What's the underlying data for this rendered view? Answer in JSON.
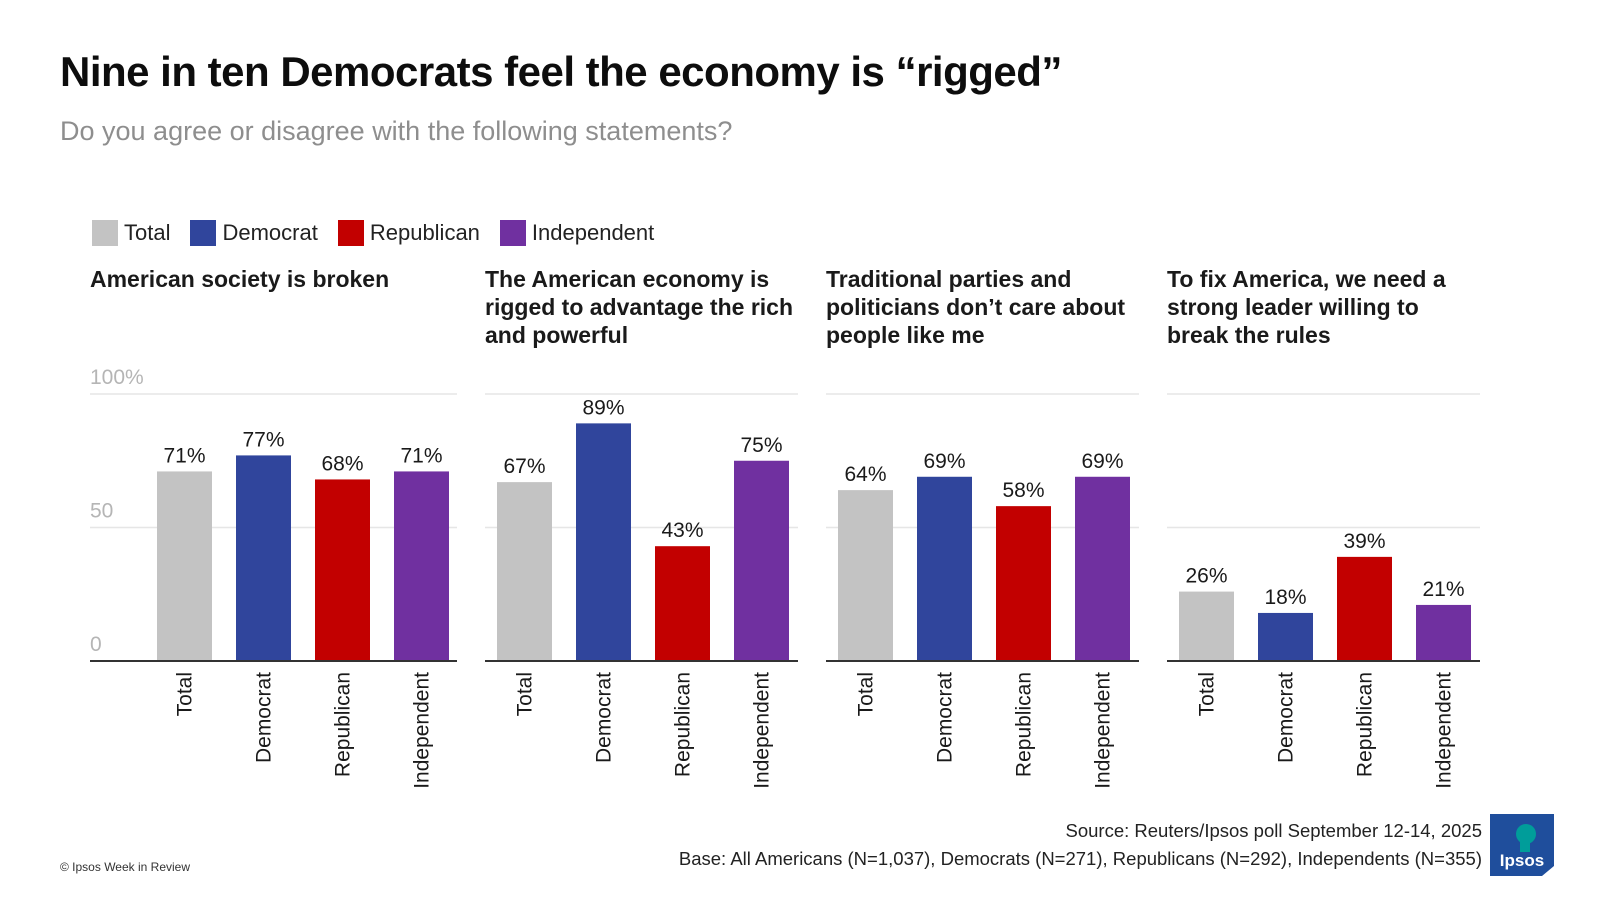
{
  "header": {
    "title": "Nine in ten Democrats feel the economy is “rigged”",
    "subtitle": "Do you agree or disagree with the following statements?"
  },
  "legend": {
    "items": [
      {
        "label": "Total",
        "color": "#c3c3c3"
      },
      {
        "label": "Democrat",
        "color": "#30459c"
      },
      {
        "label": "Republican",
        "color": "#c20000"
      },
      {
        "label": "Independent",
        "color": "#7030a0"
      }
    ]
  },
  "chart_data": [
    {
      "type": "bar",
      "title_lines": [
        "American society is broken"
      ],
      "categories": [
        "Total",
        "Democrat",
        "Republican",
        "Independent"
      ],
      "values": [
        71,
        77,
        68,
        71
      ],
      "value_labels": [
        "71%",
        "77%",
        "68%",
        "71%"
      ],
      "ylim": [
        0,
        100
      ],
      "yticks": [
        "0",
        "50",
        "100%"
      ],
      "grid": true
    },
    {
      "type": "bar",
      "title_lines": [
        "The American economy is",
        "rigged to advantage the rich",
        "and powerful"
      ],
      "categories": [
        "Total",
        "Democrat",
        "Republican",
        "Independent"
      ],
      "values": [
        67,
        89,
        43,
        75
      ],
      "value_labels": [
        "67%",
        "89%",
        "43%",
        "75%"
      ],
      "ylim": [
        0,
        100
      ],
      "grid": true
    },
    {
      "type": "bar",
      "title_lines": [
        "Traditional parties and",
        "politicians don’t care about",
        "people like me"
      ],
      "categories": [
        "Total",
        "Democrat",
        "Republican",
        "Independent"
      ],
      "values": [
        64,
        69,
        58,
        69
      ],
      "value_labels": [
        "64%",
        "69%",
        "58%",
        "69%"
      ],
      "ylim": [
        0,
        100
      ],
      "grid": true
    },
    {
      "type": "bar",
      "title_lines": [
        "To fix America, we need a",
        "strong leader willing to",
        "break the rules"
      ],
      "categories": [
        "Total",
        "Democrat",
        "Republican",
        "Independent"
      ],
      "values": [
        26,
        18,
        39,
        21
      ],
      "value_labels": [
        "26%",
        "18%",
        "39%",
        "21%"
      ],
      "ylim": [
        0,
        100
      ],
      "grid": true
    }
  ],
  "footer": {
    "source": "Source: Reuters/Ipsos poll September 12-14, 2025",
    "base": "Base:  All Americans (N=1,037), Democrats (N=271), Republicans (N=292), Independents (N=355)",
    "copyright": "© Ipsos Week in Review",
    "logo_text": "Ipsos",
    "logo_color": "#009d9a",
    "logo_bg": "#1f4e9c"
  }
}
